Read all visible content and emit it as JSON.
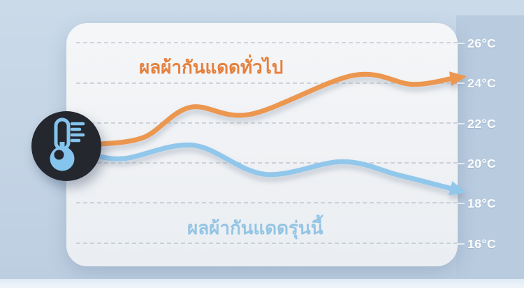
{
  "chart_data": {
    "type": "line",
    "title": "",
    "legend_position": "inline-labels",
    "grid": "dashed-horizontal",
    "y_axis": {
      "unit": "°C",
      "ticks": [
        "26°C",
        "24°C",
        "22°C",
        "20°C",
        "18°C",
        "16°C"
      ],
      "values": [
        26,
        24,
        22,
        20,
        18,
        16
      ],
      "ylim": [
        15,
        27
      ],
      "side": "right"
    },
    "series": [
      {
        "name": "ผลผ้ากันแดดทั่วไป",
        "color": "#ec9750",
        "label_color": "#e5813d",
        "x_frac": [
          0,
          0.13,
          0.26,
          0.43,
          0.72,
          0.885,
          1
        ],
        "values_c": [
          20.95,
          21.3,
          22.8,
          22.45,
          24.4,
          23.95,
          24.25
        ],
        "end_marker": "arrow-right"
      },
      {
        "name": "ผลผ้ากันแดดรุ่นนี้",
        "color": "#92c7ec",
        "label_color": "#8dc2e4",
        "x_frac": [
          0,
          0.08,
          0.27,
          0.47,
          0.69,
          0.85,
          1
        ],
        "values_c": [
          20.35,
          20.25,
          20.9,
          19.45,
          20.08,
          19.4,
          18.72
        ],
        "end_marker": "arrow-right"
      }
    ]
  },
  "icons": {
    "badge": "thermometer-icon"
  },
  "colors": {
    "background": "#c5d5e6",
    "axis_band": "#b9cbdf",
    "panel": "#f1f3f5",
    "tick_text": "#ffffff",
    "badge_bg": "#24272e",
    "badge_glyph": "#85c4ec"
  }
}
